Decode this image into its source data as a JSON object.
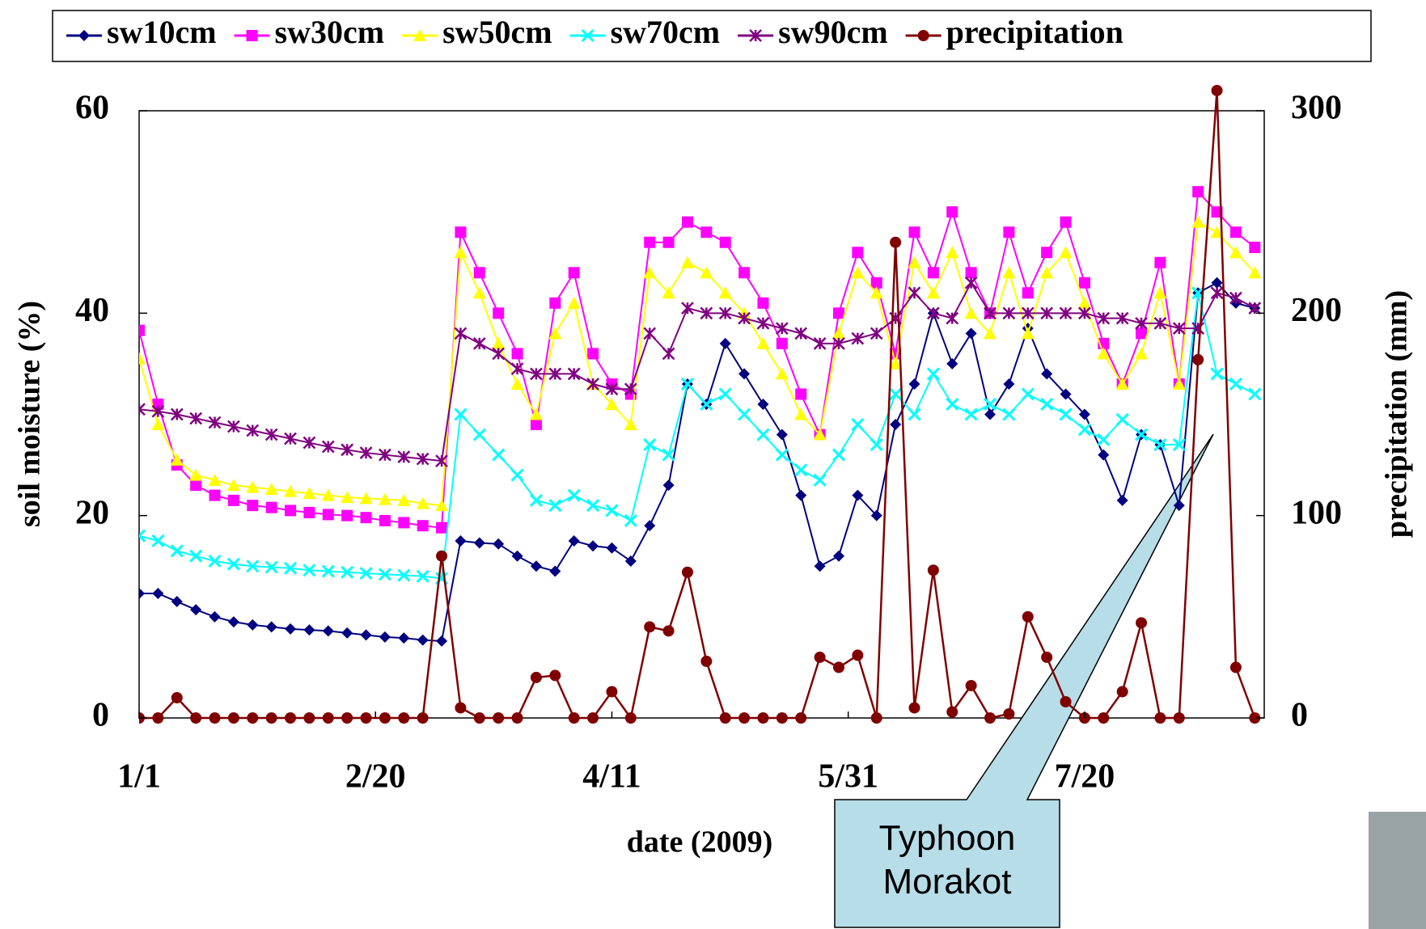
{
  "chart_data": {
    "type": "line",
    "x": [
      "1/1",
      "1/5",
      "1/9",
      "1/13",
      "1/17",
      "1/21",
      "1/25",
      "1/29",
      "2/2",
      "2/6",
      "2/10",
      "2/14",
      "2/18",
      "2/22",
      "2/26",
      "3/2",
      "3/6",
      "3/10",
      "3/14",
      "3/18",
      "3/22",
      "3/26",
      "3/30",
      "4/3",
      "4/7",
      "4/11",
      "4/15",
      "4/19",
      "4/23",
      "4/27",
      "5/1",
      "5/5",
      "5/9",
      "5/13",
      "5/17",
      "5/21",
      "5/25",
      "5/29",
      "6/2",
      "6/6",
      "6/10",
      "6/14",
      "6/18",
      "6/22",
      "6/26",
      "6/30",
      "7/4",
      "7/8",
      "7/12",
      "7/16",
      "7/20",
      "7/24",
      "7/28",
      "8/1",
      "8/5",
      "8/9",
      "8/13",
      "8/17",
      "8/21",
      "8/25"
    ],
    "series": [
      {
        "name": "sw10cm",
        "color": "#000080",
        "marker": "diamond",
        "values": [
          12.3,
          12.3,
          11.5,
          10.7,
          10.0,
          9.5,
          9.2,
          9.0,
          8.8,
          8.7,
          8.6,
          8.4,
          8.2,
          8.0,
          7.9,
          7.7,
          7.6,
          17.5,
          17.3,
          17.2,
          16,
          15,
          14.5,
          17.5,
          17,
          16.8,
          15.5,
          19,
          23,
          33,
          31,
          37,
          34,
          31,
          28,
          22,
          15,
          16,
          22,
          20,
          29,
          33,
          40,
          35,
          38,
          30,
          33,
          38.5,
          34,
          32,
          30,
          26,
          21.5,
          28,
          27,
          21,
          42,
          43,
          41,
          40.5
        ]
      },
      {
        "name": "sw30cm",
        "color": "#ff00ff",
        "marker": "square",
        "values": [
          38.3,
          31,
          25,
          23,
          22,
          21.5,
          21,
          20.8,
          20.5,
          20.3,
          20.1,
          20,
          19.8,
          19.5,
          19.3,
          19,
          18.8,
          48,
          44,
          40,
          36,
          29,
          41,
          44,
          36,
          33,
          32,
          47,
          47,
          49,
          48,
          47,
          44,
          41,
          37,
          32,
          28,
          40,
          46,
          43,
          36,
          48,
          44,
          50,
          44,
          40,
          48,
          42,
          46,
          49,
          43,
          37,
          33,
          38,
          45,
          33,
          52,
          50,
          48,
          46.5
        ]
      },
      {
        "name": "sw50cm",
        "color": "#ffff00",
        "marker": "triangle",
        "values": [
          35.5,
          29,
          25.5,
          24,
          23.5,
          23,
          22.8,
          22.6,
          22.4,
          22.2,
          22,
          21.8,
          21.7,
          21.6,
          21.5,
          21.2,
          21,
          46,
          42,
          37,
          33,
          30,
          38,
          41,
          33,
          31,
          29,
          44,
          42,
          45,
          44,
          42,
          40,
          37,
          34,
          30,
          28,
          38,
          44,
          42,
          35,
          45,
          42,
          46,
          40,
          38,
          44,
          38,
          44,
          46,
          41,
          36,
          33,
          36,
          42,
          33,
          49,
          48,
          46,
          44
        ]
      },
      {
        "name": "sw70cm",
        "color": "#00ffff",
        "marker": "cross",
        "values": [
          18,
          17.5,
          16.5,
          16,
          15.5,
          15.2,
          15,
          14.9,
          14.8,
          14.6,
          14.5,
          14.4,
          14.3,
          14.2,
          14.1,
          14,
          13.8,
          30,
          28,
          26,
          24,
          21.5,
          21,
          22,
          21,
          20.5,
          19.5,
          27,
          26,
          33,
          31,
          32,
          30,
          28,
          26,
          24.5,
          23.5,
          26,
          29,
          27,
          32,
          30,
          34,
          31,
          30,
          31,
          30,
          32,
          31,
          30,
          28.5,
          27.5,
          29.5,
          28,
          27,
          27,
          42,
          34,
          33,
          32
        ]
      },
      {
        "name": "sw90cm",
        "color": "#800080",
        "marker": "star",
        "values": [
          30.5,
          30.3,
          30,
          29.6,
          29.2,
          28.8,
          28.4,
          28,
          27.6,
          27.2,
          26.8,
          26.5,
          26.2,
          26,
          25.8,
          25.6,
          25.4,
          38,
          37,
          36,
          34.5,
          34,
          34,
          34,
          33,
          32.5,
          32.5,
          38,
          36,
          40.5,
          40,
          40,
          39.5,
          39,
          38.5,
          38,
          37,
          37,
          37.5,
          38,
          39.5,
          42,
          40,
          39.5,
          43,
          40,
          40,
          40,
          40,
          40,
          40,
          39.5,
          39.5,
          39,
          39,
          38.5,
          38.5,
          42,
          41.5,
          40.5
        ]
      },
      {
        "name": "precipitation",
        "color": "#800000",
        "marker": "circle",
        "axis": "y2",
        "values": [
          0,
          0,
          10,
          0,
          0,
          0,
          0,
          0,
          0,
          0,
          0,
          0,
          0,
          0,
          0,
          0,
          80,
          5,
          0,
          0,
          0,
          20,
          21,
          0,
          0,
          13,
          0,
          45,
          43,
          72,
          28,
          0,
          0,
          0,
          0,
          0,
          30,
          25,
          31,
          0,
          235,
          5,
          73,
          3,
          16,
          0,
          2,
          50,
          30,
          8,
          0,
          0,
          13,
          47,
          0,
          0,
          177,
          310,
          25,
          0
        ]
      }
    ],
    "xlim": [
      "1/1",
      "8/27"
    ],
    "xticks": [
      "1/1",
      "2/20",
      "4/11",
      "5/31",
      "7/20"
    ],
    "ylim": [
      0,
      60
    ],
    "yticks": [
      0,
      20,
      40,
      60
    ],
    "y2lim": [
      0,
      300
    ],
    "y2ticks": [
      0,
      100,
      200,
      300
    ],
    "xlabel": "date (2009)",
    "ylabel": "soil moisture (%)",
    "y2label": "precipitation (mm)",
    "annotation": "Typhoon Morakot"
  }
}
